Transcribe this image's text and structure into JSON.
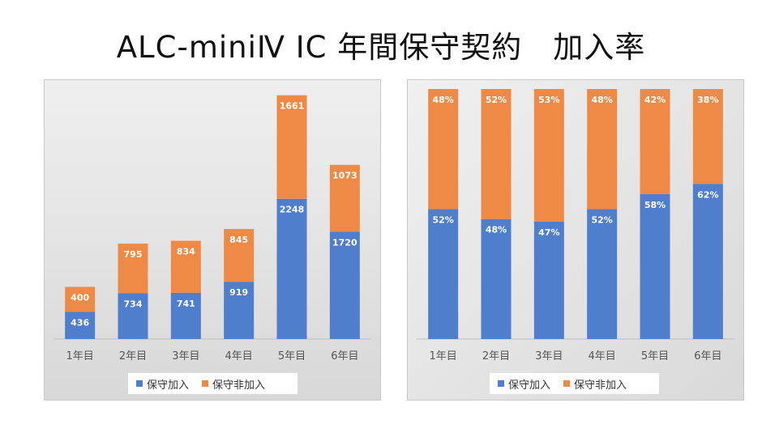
{
  "slide": {
    "title": "ALC-miniⅣ IC 年間保守契約　加入率"
  },
  "colors": {
    "joined": "#4f7fcc",
    "not_joined": "#ee8a45"
  },
  "chart_data": [
    {
      "type": "bar",
      "stacked": true,
      "categories": [
        "1年目",
        "2年目",
        "3年目",
        "4年目",
        "5年目",
        "6年目"
      ],
      "series": [
        {
          "name": "保守加入",
          "values": [
            436,
            734,
            741,
            919,
            2248,
            1720
          ]
        },
        {
          "name": "保守非加入",
          "values": [
            400,
            795,
            834,
            845,
            1661,
            1073
          ]
        }
      ],
      "ylim": [
        0,
        4100
      ],
      "legend": "bottom",
      "title": "",
      "xlabel": "",
      "ylabel": ""
    },
    {
      "type": "bar",
      "stacked": true,
      "percent": true,
      "categories": [
        "1年目",
        "2年目",
        "3年目",
        "4年目",
        "5年目",
        "6年目"
      ],
      "series": [
        {
          "name": "保守加入",
          "values": [
            52,
            48,
            47,
            52,
            58,
            62
          ],
          "labels": [
            "52%",
            "48%",
            "47%",
            "52%",
            "58%",
            "62%"
          ]
        },
        {
          "name": "保守非加入",
          "values": [
            48,
            52,
            53,
            48,
            42,
            38
          ],
          "labels": [
            "48%",
            "52%",
            "53%",
            "48%",
            "42%",
            "38%"
          ]
        }
      ],
      "ylim": [
        0,
        100
      ],
      "legend": "bottom",
      "title": "",
      "xlabel": "",
      "ylabel": ""
    }
  ]
}
